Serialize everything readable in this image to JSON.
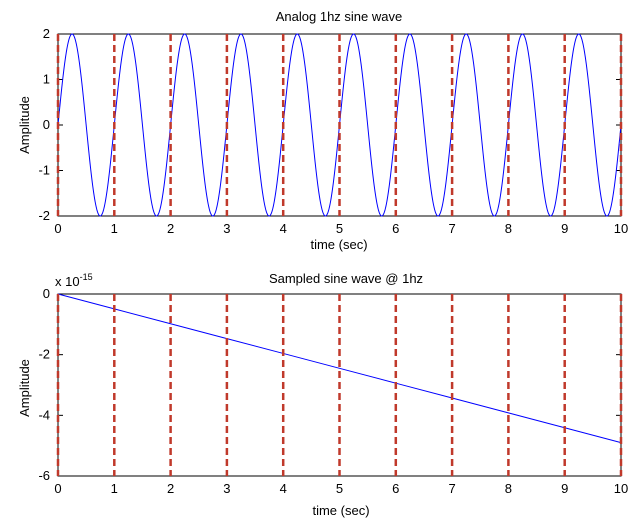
{
  "chart_data": [
    {
      "type": "line",
      "title": "Analog 1hz sine wave",
      "xlabel": "time (sec)",
      "ylabel": "Amplitude",
      "xlim": [
        0,
        10
      ],
      "ylim": [
        -2,
        2
      ],
      "xticks": [
        "0",
        "1",
        "2",
        "3",
        "4",
        "5",
        "6",
        "7",
        "8",
        "9",
        "10"
      ],
      "yticks": [
        "2",
        "1",
        "0",
        "-1",
        "-2"
      ],
      "grid": false,
      "sample_lines_x": [
        0,
        1,
        2,
        3,
        4,
        5,
        6,
        7,
        8,
        9,
        10
      ],
      "series": [
        {
          "function": "2*sin(2*pi*1*t)",
          "amplitude": 2,
          "frequency_hz": 1,
          "x_start": 0,
          "x_end": 10,
          "color": "#0000ff"
        }
      ],
      "sample_line_color": "#c0392b"
    },
    {
      "type": "line",
      "title": "Sampled sine wave @ 1hz",
      "xlabel": "time (sec)",
      "ylabel": "Amplitude",
      "y_exponent_base": "x 10",
      "y_exponent_power": "-15",
      "xlim": [
        0,
        10
      ],
      "ylim": [
        -6,
        0
      ],
      "xticks": [
        "0",
        "1",
        "2",
        "3",
        "4",
        "5",
        "6",
        "7",
        "8",
        "9",
        "10"
      ],
      "yticks": [
        "0",
        "-2",
        "-4",
        "-6"
      ],
      "grid": false,
      "sample_lines_x": [
        0,
        1,
        2,
        3,
        4,
        5,
        6,
        7,
        8,
        9,
        10
      ],
      "series": [
        {
          "x": [
            0,
            1,
            2,
            3,
            4,
            5,
            6,
            7,
            8,
            9,
            10
          ],
          "y": [
            0,
            -0.49,
            -0.98,
            -1.47,
            -1.96,
            -2.45,
            -2.94,
            -3.43,
            -3.92,
            -4.41,
            -4.9
          ],
          "color": "#0000ff"
        }
      ],
      "sample_line_color": "#c0392b"
    }
  ]
}
